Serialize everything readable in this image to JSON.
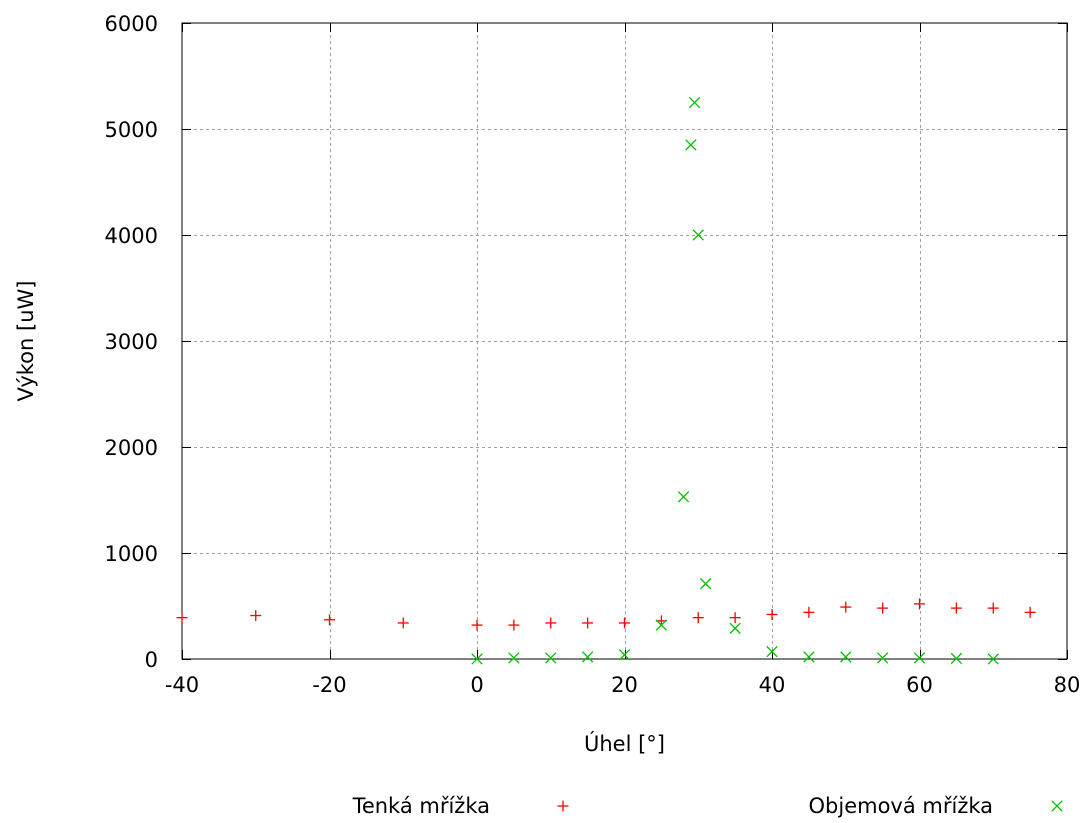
{
  "chart_data": {
    "type": "scatter",
    "title": "",
    "xlabel": "Úhel [°]",
    "ylabel": "Výkon [uW]",
    "xlim": [
      -40,
      80
    ],
    "ylim": [
      0,
      6000
    ],
    "x_ticks": [
      -40,
      -20,
      0,
      20,
      40,
      60,
      80
    ],
    "y_ticks": [
      0,
      1000,
      2000,
      3000,
      4000,
      5000,
      6000
    ],
    "x_tick_labels": [
      "-40",
      "-20",
      "0",
      "20",
      "40",
      "60",
      "80"
    ],
    "y_tick_labels": [
      "0",
      "1000",
      "2000",
      "3000",
      "4000",
      "5000",
      "6000"
    ],
    "grid": true,
    "legend_position": "bottom",
    "series": [
      {
        "name": "Tenká mřížka",
        "marker": "plus",
        "color": "#ff0000",
        "points": [
          {
            "x": -40,
            "y": 390
          },
          {
            "x": -30,
            "y": 410
          },
          {
            "x": -20,
            "y": 370
          },
          {
            "x": -10,
            "y": 340
          },
          {
            "x": 0,
            "y": 320
          },
          {
            "x": 5,
            "y": 320
          },
          {
            "x": 10,
            "y": 340
          },
          {
            "x": 15,
            "y": 340
          },
          {
            "x": 20,
            "y": 340
          },
          {
            "x": 25,
            "y": 360
          },
          {
            "x": 30,
            "y": 390
          },
          {
            "x": 35,
            "y": 390
          },
          {
            "x": 40,
            "y": 420
          },
          {
            "x": 45,
            "y": 440
          },
          {
            "x": 50,
            "y": 490
          },
          {
            "x": 55,
            "y": 480
          },
          {
            "x": 60,
            "y": 520
          },
          {
            "x": 65,
            "y": 480
          },
          {
            "x": 70,
            "y": 480
          },
          {
            "x": 75,
            "y": 440
          }
        ]
      },
      {
        "name": "Objemová mřížka",
        "marker": "cross",
        "color": "#00c000",
        "points": [
          {
            "x": 0,
            "y": 0
          },
          {
            "x": 5,
            "y": 10
          },
          {
            "x": 10,
            "y": 10
          },
          {
            "x": 15,
            "y": 20
          },
          {
            "x": 20,
            "y": 40
          },
          {
            "x": 25,
            "y": 320
          },
          {
            "x": 28,
            "y": 1530
          },
          {
            "x": 29,
            "y": 4850
          },
          {
            "x": 29.5,
            "y": 5250
          },
          {
            "x": 30,
            "y": 4000
          },
          {
            "x": 31,
            "y": 710
          },
          {
            "x": 35,
            "y": 290
          },
          {
            "x": 40,
            "y": 70
          },
          {
            "x": 45,
            "y": 20
          },
          {
            "x": 50,
            "y": 20
          },
          {
            "x": 55,
            "y": 10
          },
          {
            "x": 60,
            "y": 10
          },
          {
            "x": 65,
            "y": 5
          },
          {
            "x": 70,
            "y": 0
          }
        ]
      }
    ]
  }
}
